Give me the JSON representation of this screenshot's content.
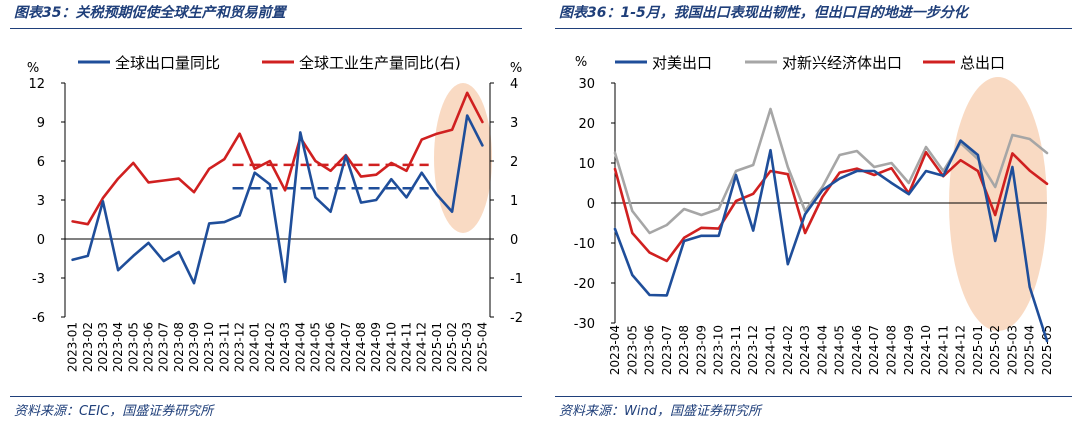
{
  "left": {
    "title": "图表35：关税预期促使全球生产和贸易前置",
    "source": "资料来源：CEIC，国盛证券研究所"
  },
  "right": {
    "title": "图表36：1-5月，我国出口表现出韧性，但出口目的地进一步分化",
    "source": "资料来源：Wind，国盛证券研究所"
  },
  "chart_data": [
    {
      "type": "line",
      "dual_axis": true,
      "ylabel": "%",
      "y2label": "%",
      "ylim": [
        -6,
        12
      ],
      "yticks": [
        -6,
        -3,
        0,
        3,
        6,
        9,
        12
      ],
      "y2lim": [
        -2,
        4
      ],
      "y2ticks": [
        -2,
        -1,
        0,
        1,
        2,
        3,
        4
      ],
      "categories": [
        "2023-01",
        "2023-02",
        "2023-03",
        "2023-04",
        "2023-05",
        "2023-06",
        "2023-07",
        "2023-08",
        "2023-09",
        "2023-10",
        "2023-11",
        "2023-12",
        "2024-01",
        "2024-02",
        "2024-03",
        "2024-04",
        "2024-05",
        "2024-06",
        "2024-07",
        "2024-08",
        "2024-09",
        "2024-10",
        "2024-11",
        "2024-12",
        "2025-01",
        "2025-02",
        "2025-03",
        "2025-04"
      ],
      "legend_position": "top",
      "series": [
        {
          "name": "全球出口量同比",
          "axis": "left",
          "color": "#1f4e9a",
          "dashed_avg": 3.9,
          "values": [
            -1.6,
            -1.3,
            2.9,
            -2.4,
            -1.3,
            -0.3,
            -1.7,
            -1.0,
            -3.4,
            1.2,
            1.3,
            1.8,
            5.1,
            4.2,
            -3.3,
            8.2,
            3.2,
            2.1,
            6.4,
            2.8,
            3.0,
            4.6,
            3.2,
            5.1,
            3.4,
            2.1,
            9.5,
            7.2
          ]
        },
        {
          "name": "全球工业生产量同比(右)",
          "axis": "right",
          "color": "#d02020",
          "dashed_avg": 1.9,
          "values": [
            0.45,
            0.38,
            1.05,
            1.55,
            1.95,
            1.45,
            1.5,
            1.55,
            1.2,
            1.8,
            2.05,
            2.7,
            1.8,
            2.0,
            1.25,
            2.6,
            2.0,
            1.75,
            2.15,
            1.6,
            1.65,
            1.95,
            1.75,
            2.55,
            2.7,
            2.8,
            3.75,
            3.0
          ]
        }
      ]
    },
    {
      "type": "line",
      "ylabel": "%",
      "ylim": [
        -30,
        30
      ],
      "yticks": [
        -30,
        -20,
        -10,
        0,
        10,
        20,
        30
      ],
      "categories": [
        "2023-04",
        "2023-05",
        "2023-06",
        "2023-07",
        "2023-08",
        "2023-09",
        "2023-10",
        "2023-11",
        "2023-12",
        "2024-01",
        "2024-02",
        "2024-03",
        "2024-04",
        "2024-05",
        "2024-06",
        "2024-07",
        "2024-08",
        "2024-09",
        "2024-10",
        "2024-11",
        "2024-12",
        "2025-01",
        "2025-02",
        "2025-03",
        "2025-04",
        "2025-05"
      ],
      "legend_position": "top",
      "series": [
        {
          "name": "对美出口",
          "color": "#1f4e9a",
          "values": [
            -6.5,
            -18.0,
            -23.0,
            -23.1,
            -9.5,
            -8.2,
            -8.2,
            7.0,
            -6.9,
            13.2,
            -15.3,
            -2.8,
            3.2,
            6.1,
            8.0,
            8.0,
            5.0,
            2.2,
            8.0,
            6.8,
            15.6,
            12.0,
            -9.5,
            9.0,
            -21.0,
            -34.5
          ]
        },
        {
          "name": "对新兴经济体出口",
          "color": "#a6a6a6",
          "values": [
            12.5,
            -2.0,
            -7.5,
            -5.5,
            -1.5,
            -3.0,
            -1.5,
            8.0,
            9.5,
            23.5,
            9.0,
            -2.0,
            4.0,
            12.0,
            13.0,
            9.0,
            10.0,
            5.0,
            14.0,
            8.0,
            15.0,
            11.0,
            4.0,
            17.0,
            16.0,
            12.5
          ]
        },
        {
          "name": "总出口",
          "color": "#d02020",
          "values": [
            8.5,
            -7.5,
            -12.4,
            -14.5,
            -8.7,
            -6.2,
            -6.4,
            0.5,
            2.3,
            8.0,
            7.2,
            -7.5,
            1.5,
            7.6,
            8.6,
            7.0,
            8.7,
            2.4,
            12.7,
            6.7,
            10.7,
            8.0,
            -3.0,
            12.4,
            8.1,
            4.8
          ]
        }
      ]
    }
  ]
}
